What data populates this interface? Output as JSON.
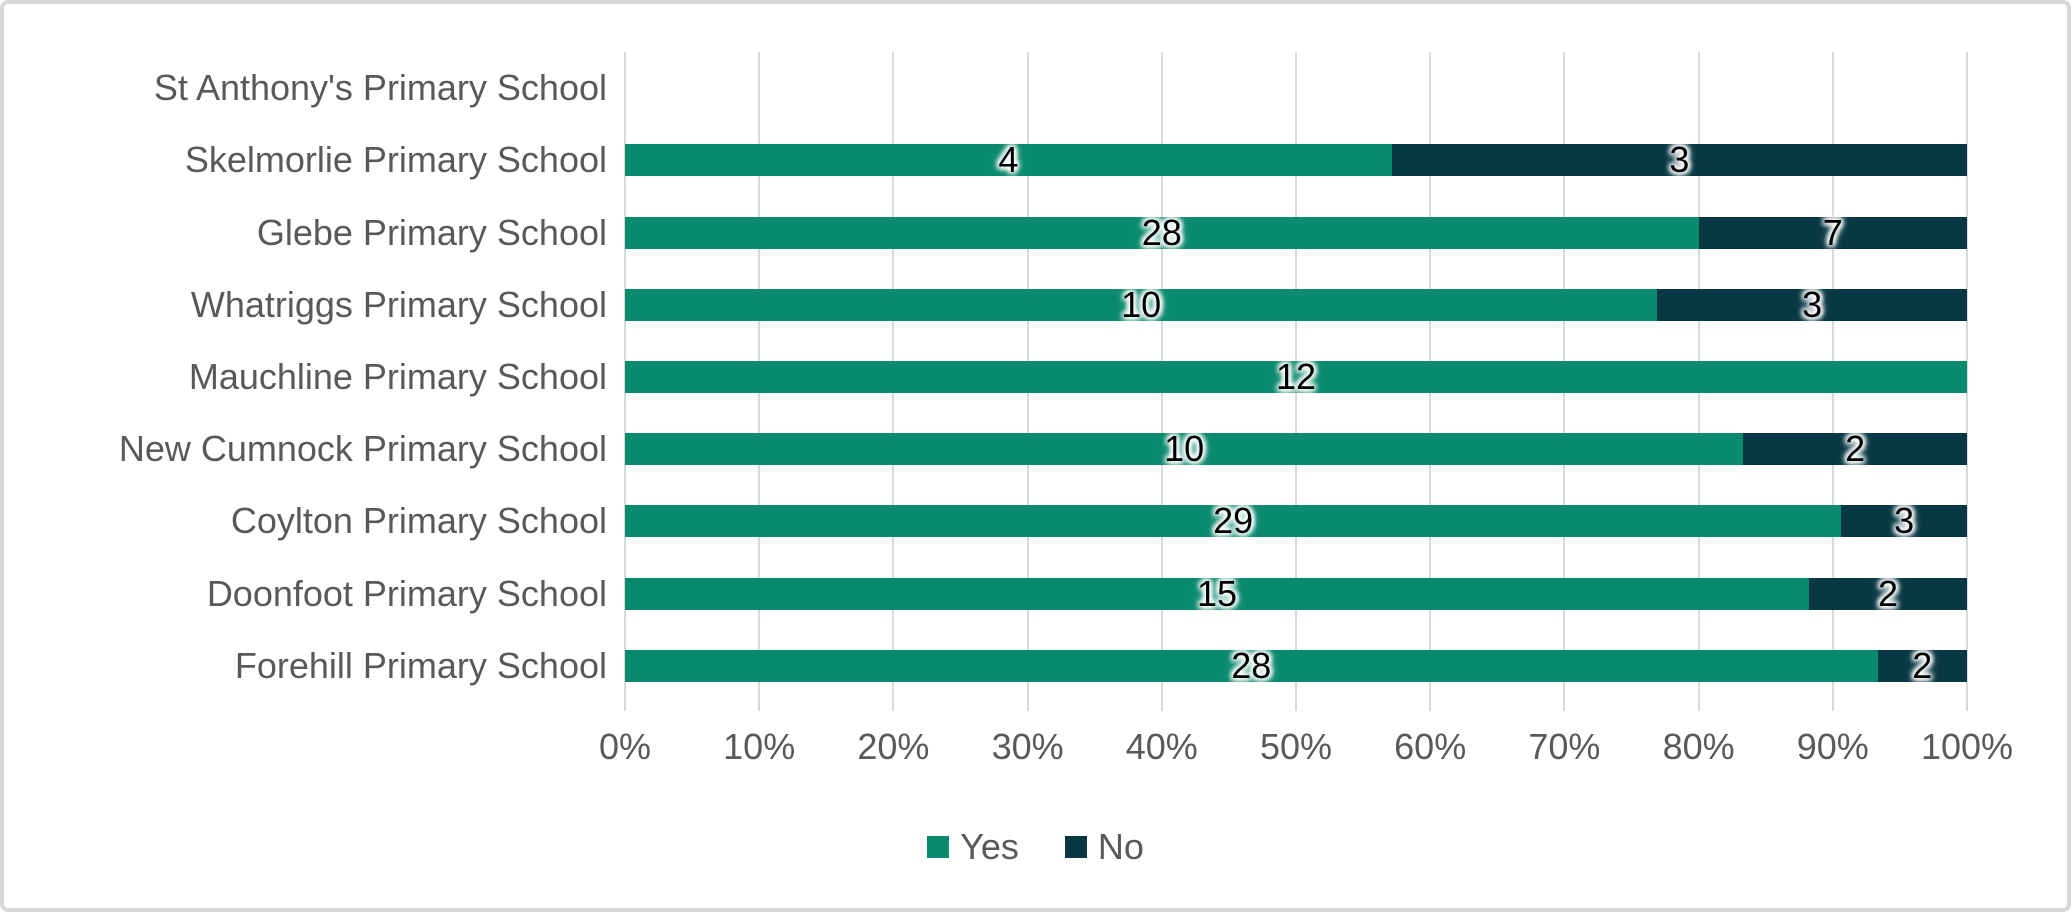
{
  "chart_data": {
    "type": "bar",
    "orientation": "horizontal",
    "stacking": "percent",
    "title": "",
    "xlabel": "",
    "ylabel": "",
    "categories": [
      "St Anthony's Primary School",
      "Skelmorlie Primary School",
      "Glebe Primary School",
      "Whatriggs Primary School",
      "Mauchline Primary School",
      "New Cumnock Primary School",
      "Coylton Primary School",
      "Doonfoot Primary School",
      "Forehill Primary School"
    ],
    "series": [
      {
        "name": "Yes",
        "color": "#098A6E",
        "values": [
          null,
          4,
          28,
          10,
          12,
          10,
          29,
          15,
          28
        ]
      },
      {
        "name": "No",
        "color": "#083844",
        "values": [
          null,
          3,
          7,
          3,
          0,
          2,
          3,
          2,
          2
        ]
      }
    ],
    "x_ticks": [
      "0%",
      "10%",
      "20%",
      "30%",
      "40%",
      "50%",
      "60%",
      "70%",
      "80%",
      "90%",
      "100%"
    ],
    "xlim": [
      0,
      100
    ],
    "grid": true,
    "legend": {
      "position": "bottom",
      "items": [
        "Yes",
        "No"
      ]
    },
    "colors": {
      "grid": "#D9D9D9",
      "axis_text": "#595959",
      "data_label": "#000000",
      "frame_border": "#D7D7D7",
      "background": "#FFFFFF"
    }
  }
}
